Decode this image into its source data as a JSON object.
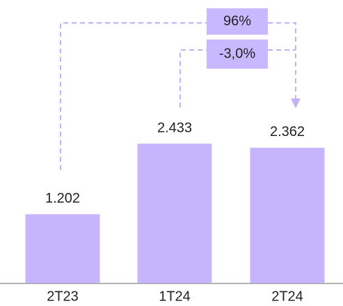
{
  "chart_data": {
    "type": "bar",
    "categories": [
      "2T23",
      "1T24",
      "2T24"
    ],
    "values": [
      1202,
      2433,
      2362
    ],
    "value_labels": [
      "1.202",
      "2.433",
      "2.362"
    ],
    "color": "#c6b4fd",
    "annotations": [
      "96%",
      "-3,0%"
    ]
  }
}
